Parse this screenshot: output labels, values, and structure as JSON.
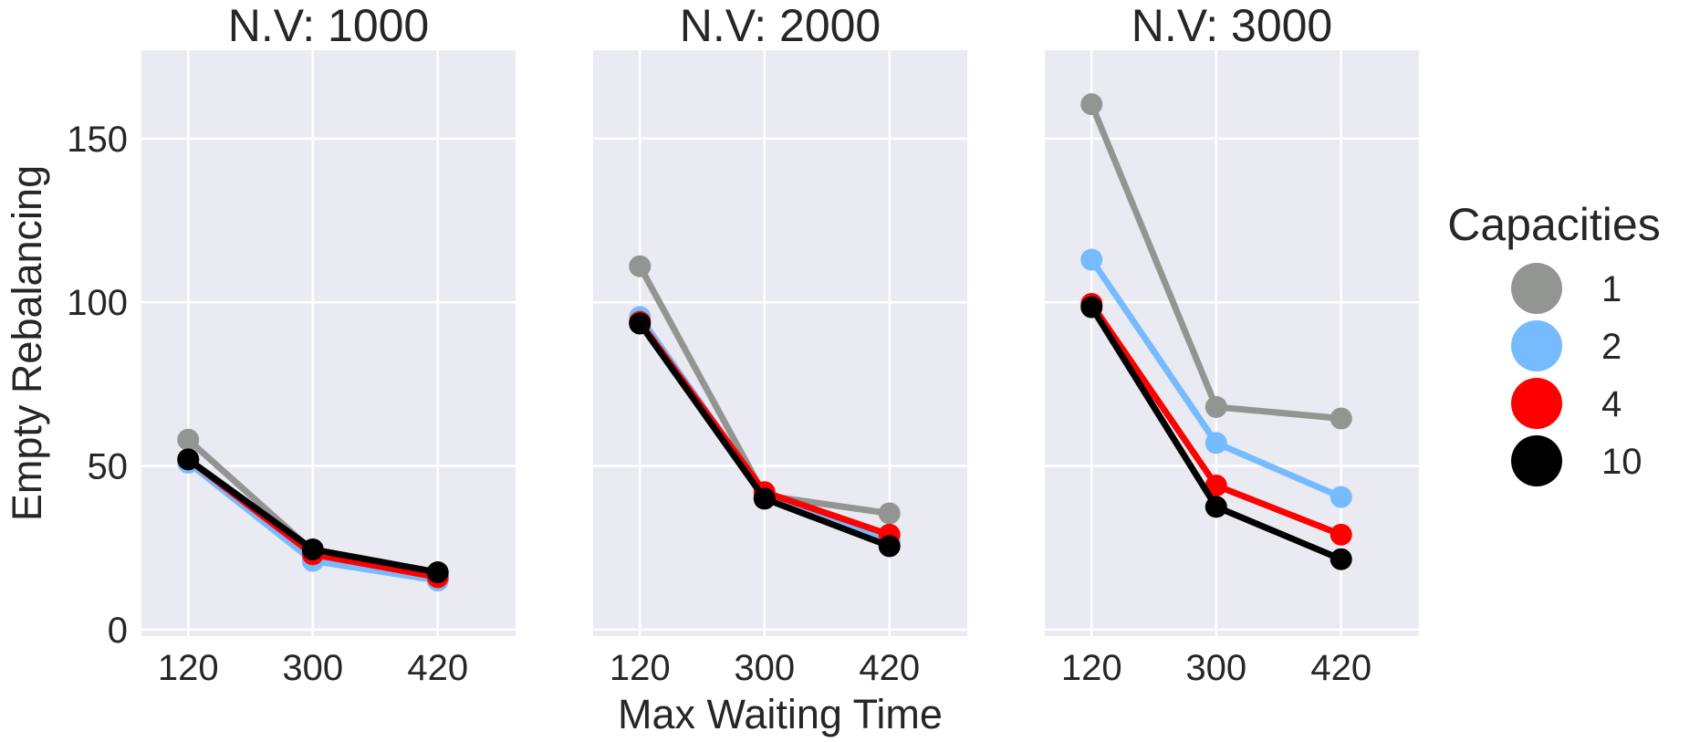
{
  "chart_data": {
    "type": "line",
    "ylabel": "Empty Rebalancing",
    "xlabel": "Max Waiting Time",
    "x": [
      "120",
      "300",
      "420"
    ],
    "ylim": [
      -2,
      177
    ],
    "yticks": [
      0,
      50,
      100,
      150
    ],
    "grid": true,
    "legend": {
      "title": "Capacities",
      "placement": "right",
      "entries": [
        {
          "label": "1",
          "color": "#929591"
        },
        {
          "label": "2",
          "color": "#75bbfd"
        },
        {
          "label": "4",
          "color": "#ff0000"
        },
        {
          "label": "10",
          "color": "#000000"
        }
      ]
    },
    "panels": [
      {
        "title": "N.V: 1000",
        "series": [
          {
            "name": "1",
            "color": "#929591",
            "values": [
              58,
              24,
              17
            ]
          },
          {
            "name": "2",
            "color": "#75bbfd",
            "values": [
              51,
              21,
              15
            ]
          },
          {
            "name": "4",
            "color": "#ff0000",
            "values": [
              52,
              23,
              16
            ]
          },
          {
            "name": "10",
            "color": "#000000",
            "values": [
              52,
              24.5,
              17.5
            ]
          }
        ]
      },
      {
        "title": "N.V: 2000",
        "series": [
          {
            "name": "1",
            "color": "#929591",
            "values": [
              111,
              41,
              35.5
            ]
          },
          {
            "name": "2",
            "color": "#75bbfd",
            "values": [
              95.5,
              41.5,
              27
            ]
          },
          {
            "name": "4",
            "color": "#ff0000",
            "values": [
              94,
              42,
              29
            ]
          },
          {
            "name": "10",
            "color": "#000000",
            "values": [
              93.5,
              40,
              25.5
            ]
          }
        ]
      },
      {
        "title": "N.V: 3000",
        "series": [
          {
            "name": "1",
            "color": "#929591",
            "values": [
              160.5,
              68,
              64.5
            ]
          },
          {
            "name": "2",
            "color": "#75bbfd",
            "values": [
              113,
              57,
              40.5
            ]
          },
          {
            "name": "4",
            "color": "#ff0000",
            "values": [
              99.5,
              44,
              29
            ]
          },
          {
            "name": "10",
            "color": "#000000",
            "values": [
              98.5,
              37.5,
              21.5
            ]
          }
        ]
      }
    ]
  }
}
